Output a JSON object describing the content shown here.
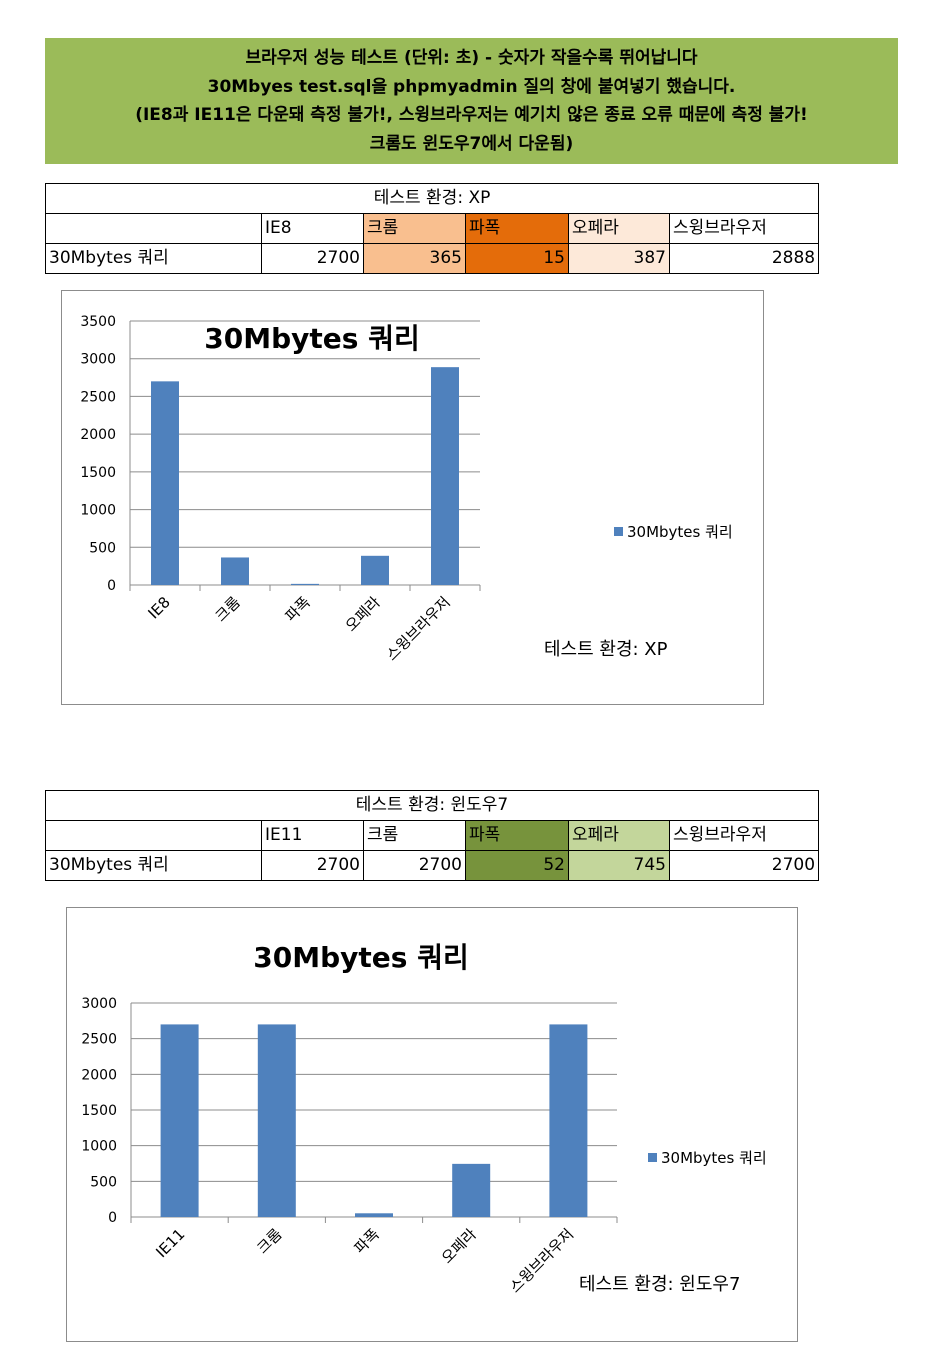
{
  "banner": {
    "line1": "브라우저 성능 테스트 (단위: 초) - 숫자가 작을수록 뛰어납니다",
    "line2": "30Mbyes test.sql을 phpmyadmin 질의 창에 붙여넣기 했습니다.",
    "line3": "(IE8과 IE11은 다운돼 측정 불가!, 스윙브라우저는 예기치 않은 종료 오류 때문에 측정 불가!",
    "line4": "크롬도 윈도우7에서 다운됨)"
  },
  "tables": [
    {
      "title": "테스트 환경: XP",
      "headers": [
        "",
        "IE8",
        "크롬",
        "파폭",
        "오페라",
        "스윙브라우저"
      ],
      "header_colors": [
        "#ffffff",
        "#ffffff",
        "#f9bf8f",
        "#e46c0a",
        "#fde9d9",
        "#ffffff"
      ],
      "row_label": "30Mbytes 쿼리",
      "values": [
        "2700",
        "365",
        "15",
        "387",
        "2888"
      ]
    },
    {
      "title": "테스트 환경: 윈도우7",
      "headers": [
        "",
        "IE11",
        "크롬",
        "파폭",
        "오페라",
        "스윙브라우저"
      ],
      "header_colors": [
        "#ffffff",
        "#ffffff",
        "#ffffff",
        "#77933c",
        "#c3d69b",
        "#ffffff"
      ],
      "row_label": "30Mbytes 쿼리",
      "values": [
        "2700",
        "2700",
        "52",
        "745",
        "2700"
      ]
    }
  ],
  "chart_data": [
    {
      "type": "bar",
      "title": "30Mbytes 쿼리",
      "categories": [
        "IE8",
        "크롬",
        "파폭",
        "오페라",
        "스윙브라우저"
      ],
      "series": [
        {
          "name": "30Mbytes 쿼리",
          "values": [
            2700,
            365,
            15,
            387,
            2888
          ],
          "color": "#4f81bd"
        }
      ],
      "ylim": [
        0,
        3500
      ],
      "yticks": [
        "0",
        "500",
        "1000",
        "1500",
        "2000",
        "2500",
        "3000",
        "3500"
      ],
      "grid": true,
      "legend": "right",
      "annotation": "테스트 환경: XP"
    },
    {
      "type": "bar",
      "title": "30Mbytes 쿼리",
      "categories": [
        "IE11",
        "크롬",
        "파폭",
        "오페라",
        "스윙브라우저"
      ],
      "series": [
        {
          "name": "30Mbytes 쿼리",
          "values": [
            2700,
            2700,
            52,
            745,
            2700
          ],
          "color": "#4f81bd"
        }
      ],
      "ylim": [
        0,
        3000
      ],
      "yticks": [
        "0",
        "500",
        "1000",
        "1500",
        "2000",
        "2500",
        "3000"
      ],
      "grid": true,
      "legend": "right",
      "annotation": "테스트 환경: 윈도우7"
    }
  ]
}
